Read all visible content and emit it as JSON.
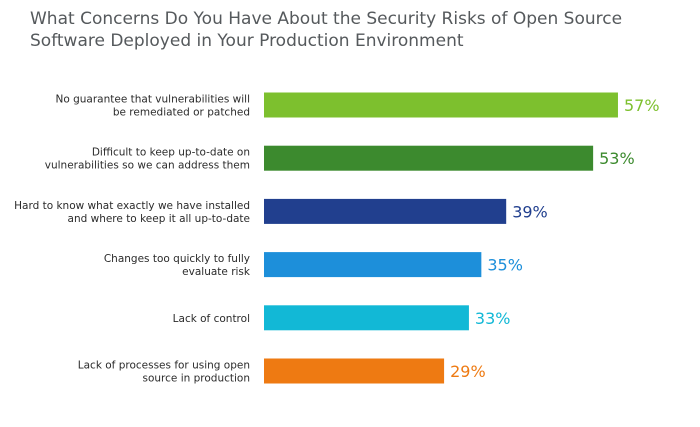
{
  "chart_data": {
    "type": "bar",
    "orientation": "horizontal",
    "title": "What Concerns Do You Have About the Security Risks of Open Source Software Deployed in Your Production Environment",
    "title_lines": [
      "What Concerns Do You Have About the Security Risks of Open Source",
      "Software Deployed in Your Production Environment"
    ],
    "categories": [
      [
        "No guarantee that vulnerabilities will",
        "be remediated or patched"
      ],
      [
        "Difficult to keep up-to-date on",
        "vulnerabilities so we can address them"
      ],
      [
        "Hard to know what exactly we have installed",
        "and where to keep it all up-to-date"
      ],
      [
        "Changes too quickly to fully",
        "evaluate risk"
      ],
      [
        "Lack of control"
      ],
      [
        "Lack of processes for using open",
        "source in production"
      ]
    ],
    "values": [
      57,
      53,
      39,
      35,
      33,
      29
    ],
    "value_labels": [
      "57%",
      "53%",
      "39%",
      "35%",
      "33%",
      "29%"
    ],
    "colors": [
      "#7dc02e",
      "#3c8a2e",
      "#213f8e",
      "#1d8fda",
      "#12b8d6",
      "#ee7a12"
    ],
    "xlim": [
      0,
      100
    ],
    "grid": false,
    "legend": "none"
  }
}
